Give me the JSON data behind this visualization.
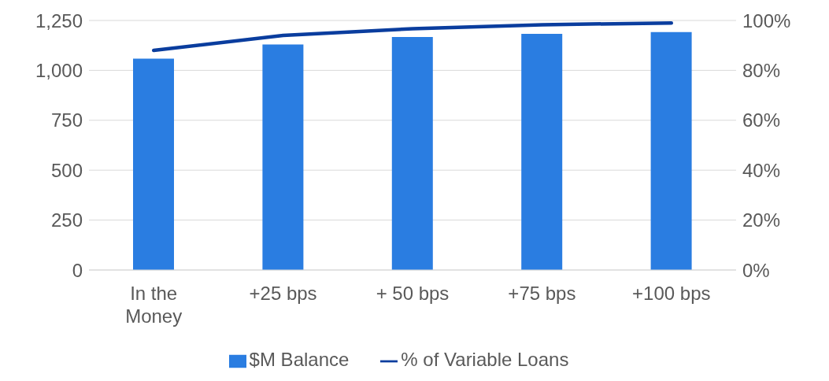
{
  "chart_data": {
    "type": "bar",
    "categories": [
      "In the Money",
      "+25 bps",
      "+ 50 bps",
      "+75 bps",
      "+100 bps"
    ],
    "series": [
      {
        "name": "$M Balance",
        "color": "#2a7de1",
        "values": [
          1059,
          1130,
          1167,
          1183,
          1192
        ]
      },
      {
        "name": "% of Variable Loans",
        "type": "line",
        "axis": "y2",
        "color": "#0a3d9e",
        "values": [
          88,
          94,
          96.7,
          98.3,
          99
        ]
      }
    ],
    "ylim": [
      0,
      1250
    ],
    "yticks": [
      {
        "value": 0,
        "label": "0"
      },
      {
        "value": 250,
        "label": "250"
      },
      {
        "value": 500,
        "label": "500"
      },
      {
        "value": 750,
        "label": "750"
      },
      {
        "value": 1000,
        "label": "1,000"
      },
      {
        "value": 1250,
        "label": "1,250"
      }
    ],
    "y2lim": [
      0,
      100
    ],
    "y2ticks": [
      {
        "value": 0,
        "label": "0%"
      },
      {
        "value": 20,
        "label": "20%"
      },
      {
        "value": 40,
        "label": "40%"
      },
      {
        "value": 60,
        "label": "60%"
      },
      {
        "value": 80,
        "label": "80%"
      },
      {
        "value": 100,
        "label": "100%"
      }
    ],
    "grid": "y",
    "legend": "bottom",
    "marker": "none",
    "line_style": "solid"
  }
}
